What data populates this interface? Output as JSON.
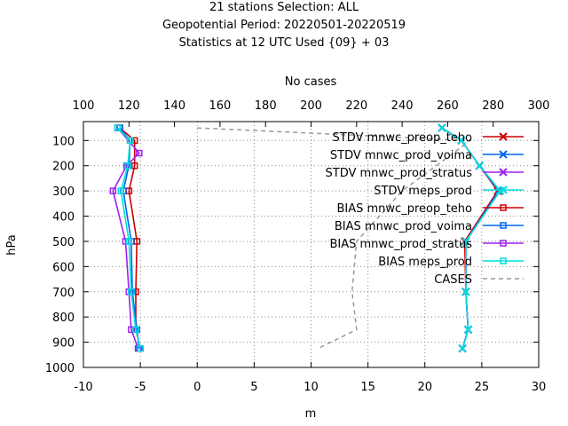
{
  "header": {
    "title_lines": [
      "21 stations Selection: ALL",
      "Geopotential  Period: 20220501-20220519",
      "Statistics at 12 UTC  Used {09} + 03"
    ]
  },
  "chart_data": {
    "type": "line",
    "title": "21 stations Selection: ALL / Geopotential  Period: 20220501-20220519 / Statistics at 12 UTC  Used {09} + 03",
    "xlabel": "m",
    "ylabel": "hPa",
    "x2label": "No cases",
    "xlim": [
      -10,
      30
    ],
    "ylim": [
      1000,
      25
    ],
    "x2lim": [
      100,
      300
    ],
    "xticks": [
      -10,
      -5,
      0,
      5,
      10,
      15,
      20,
      25,
      30
    ],
    "x2ticks": [
      100,
      120,
      140,
      160,
      180,
      200,
      220,
      240,
      260,
      280,
      300
    ],
    "yticks": [
      100,
      200,
      300,
      400,
      500,
      600,
      700,
      800,
      900,
      1000
    ],
    "grid": true,
    "legend_position": "top-right",
    "series": [
      {
        "name": "STDV mnwc_preop_teho",
        "color": "#cc0000",
        "marker": "x",
        "points": [
          [
            21.5,
            50
          ],
          [
            23.2,
            100
          ],
          [
            24.8,
            200
          ],
          [
            26.4,
            300
          ],
          [
            23.5,
            500
          ],
          [
            23.6,
            700
          ],
          [
            23.8,
            850
          ],
          [
            23.3,
            925
          ]
        ]
      },
      {
        "name": "STDV mnwc_prod_voima",
        "color": "#0066ee",
        "marker": "x",
        "points": [
          [
            21.5,
            50
          ],
          [
            23.2,
            100
          ],
          [
            24.8,
            200
          ],
          [
            26.5,
            300
          ],
          [
            23.6,
            500
          ],
          [
            23.6,
            700
          ],
          [
            23.8,
            850
          ],
          [
            23.3,
            925
          ]
        ]
      },
      {
        "name": "STDV mnwc_prod_stratus",
        "color": "#a020f0",
        "marker": "x",
        "points": [
          [
            21.5,
            50
          ],
          [
            23.2,
            100
          ],
          [
            24.8,
            200
          ],
          [
            26.6,
            300
          ],
          [
            23.6,
            500
          ],
          [
            23.6,
            700
          ],
          [
            23.8,
            850
          ],
          [
            23.3,
            925
          ]
        ]
      },
      {
        "name": "STDV meps_prod",
        "color": "#00dddd",
        "marker": "x",
        "points": [
          [
            21.5,
            50
          ],
          [
            23.2,
            100
          ],
          [
            24.8,
            200
          ],
          [
            26.6,
            300
          ],
          [
            23.6,
            500
          ],
          [
            23.6,
            700
          ],
          [
            23.8,
            850
          ],
          [
            23.3,
            925
          ]
        ]
      },
      {
        "name": "BIAS mnwc_preop_teho",
        "color": "#cc0000",
        "marker": "square",
        "points": [
          [
            -6.8,
            50
          ],
          [
            -5.5,
            100
          ],
          [
            -5.5,
            200
          ],
          [
            -6.0,
            300
          ],
          [
            -5.3,
            500
          ],
          [
            -5.4,
            700
          ],
          [
            -5.4,
            850
          ],
          [
            -5.0,
            925
          ]
        ]
      },
      {
        "name": "BIAS mnwc_prod_voima",
        "color": "#0066ee",
        "marker": "square",
        "points": [
          [
            -6.8,
            50
          ],
          [
            -5.9,
            100
          ],
          [
            -6.0,
            200
          ],
          [
            -6.5,
            300
          ],
          [
            -5.8,
            500
          ],
          [
            -5.7,
            700
          ],
          [
            -5.3,
            850
          ],
          [
            -5.1,
            925
          ]
        ]
      },
      {
        "name": "BIAS mnwc_prod_stratus",
        "color": "#a020f0",
        "marker": "square",
        "points": [
          [
            -7.0,
            50
          ],
          [
            -5.1,
            150
          ],
          [
            -6.2,
            200
          ],
          [
            -7.4,
            300
          ],
          [
            -6.3,
            500
          ],
          [
            -6.0,
            700
          ],
          [
            -5.8,
            850
          ],
          [
            -5.2,
            925
          ]
        ]
      },
      {
        "name": "BIAS meps_prod",
        "color": "#00dddd",
        "marker": "square",
        "points": [
          [
            -7.0,
            50
          ],
          [
            -5.9,
            100
          ],
          [
            -6.1,
            200
          ],
          [
            -6.7,
            300
          ],
          [
            -6.0,
            500
          ],
          [
            -5.8,
            700
          ],
          [
            -5.4,
            850
          ],
          [
            -5.0,
            925
          ]
        ]
      }
    ],
    "cases": {
      "name": "CASES",
      "color": "#999999",
      "axis": "x2",
      "points": [
        [
          150,
          50
        ],
        [
          270,
          100
        ],
        [
          240,
          300
        ],
        [
          220,
          500
        ],
        [
          218,
          700
        ],
        [
          220,
          850
        ],
        [
          203,
          925
        ]
      ]
    }
  }
}
